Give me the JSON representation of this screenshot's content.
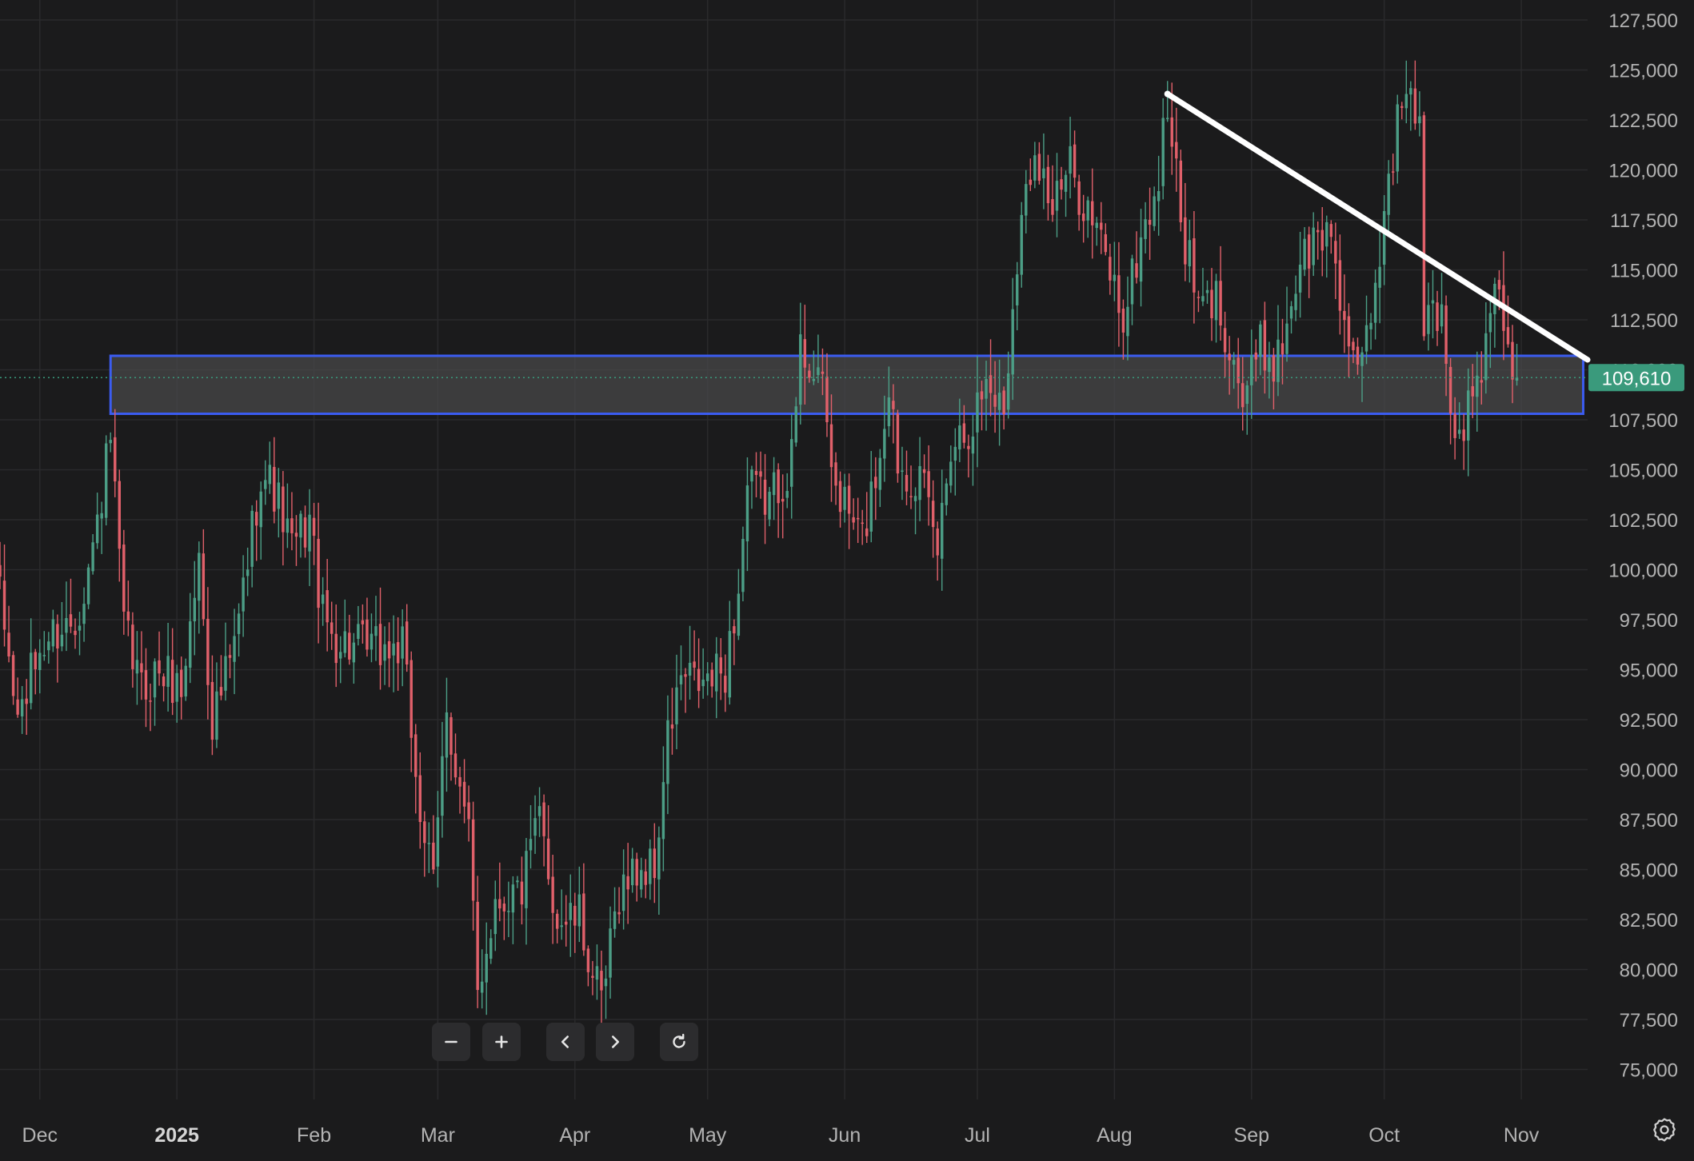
{
  "chart_data": {
    "type": "candlestick",
    "x_ticks": [
      "Dec",
      "2025",
      "Feb",
      "Mar",
      "Apr",
      "May",
      "Jun",
      "Jul",
      "Aug",
      "Sep",
      "Oct",
      "Nov"
    ],
    "y_ticks": [
      "127,500",
      "125,000",
      "122,500",
      "120,000",
      "117,500",
      "115,000",
      "112,500",
      "110,000",
      "107,500",
      "105,000",
      "102,500",
      "100,000",
      "97,500",
      "95,000",
      "92,500",
      "90,000",
      "87,500",
      "85,000",
      "82,500",
      "80,000",
      "77,500",
      "75,000"
    ],
    "ylim": [
      73500,
      128500
    ],
    "xlim": [
      "2024-11-22",
      "2025-11-16"
    ],
    "grid": true,
    "last_price": 109610,
    "last_price_label": "109,610",
    "colors": {
      "background": "#1b1b1c",
      "grid": "#2a2a2c",
      "up": "#4c9e86",
      "down": "#e0606a",
      "zone_border": "#3b5cf0",
      "zone_fill": "#4a4a4c",
      "trendline": "#ffffff",
      "last_price_badge": "#3a9a7c",
      "axis_text": "#b3b3b3"
    },
    "support_zone": {
      "from": "2024-12-17",
      "to": "2025-11-15",
      "low": 107800,
      "high": 110700
    },
    "trendline": {
      "start": [
        "2025-08-13",
        123800
      ],
      "end": [
        "2025-11-16",
        110500
      ]
    },
    "close_anchors": [
      [
        "2024-11-22",
        98500
      ],
      [
        "2024-11-26",
        92500
      ],
      [
        "2024-12-01",
        96000
      ],
      [
        "2024-12-05",
        97000
      ],
      [
        "2024-12-09",
        97500
      ],
      [
        "2024-12-13",
        101000
      ],
      [
        "2024-12-17",
        106500
      ],
      [
        "2024-12-20",
        97000
      ],
      [
        "2024-12-24",
        94000
      ],
      [
        "2024-12-28",
        95000
      ],
      [
        "2025-01-02",
        94000
      ],
      [
        "2025-01-06",
        100500
      ],
      [
        "2025-01-09",
        92500
      ],
      [
        "2025-01-14",
        96000
      ],
      [
        "2025-01-20",
        105000
      ],
      [
        "2025-01-23",
        104000
      ],
      [
        "2025-01-27",
        101000
      ],
      [
        "2025-01-31",
        102500
      ],
      [
        "2025-02-03",
        97500
      ],
      [
        "2025-02-06",
        96500
      ],
      [
        "2025-02-12",
        96000
      ],
      [
        "2025-02-18",
        96000
      ],
      [
        "2025-02-21",
        96000
      ],
      [
        "2025-02-25",
        88000
      ],
      [
        "2025-02-28",
        84000
      ],
      [
        "2025-03-03",
        93500
      ],
      [
        "2025-03-05",
        90000
      ],
      [
        "2025-03-08",
        86500
      ],
      [
        "2025-03-10",
        79000
      ],
      [
        "2025-03-14",
        83500
      ],
      [
        "2025-03-20",
        84000
      ],
      [
        "2025-03-24",
        87500
      ],
      [
        "2025-03-28",
        82500
      ],
      [
        "2025-04-02",
        82500
      ],
      [
        "2025-04-07",
        78000
      ],
      [
        "2025-04-11",
        84000
      ],
      [
        "2025-04-15",
        85000
      ],
      [
        "2025-04-19",
        85000
      ],
      [
        "2025-04-22",
        91500
      ],
      [
        "2025-04-25",
        94500
      ],
      [
        "2025-04-30",
        94200
      ],
      [
        "2025-05-05",
        95000
      ],
      [
        "2025-05-08",
        99000
      ],
      [
        "2025-05-10",
        104000
      ],
      [
        "2025-05-15",
        103500
      ],
      [
        "2025-05-20",
        105500
      ],
      [
        "2025-05-22",
        111000
      ],
      [
        "2025-05-26",
        110000
      ],
      [
        "2025-05-30",
        104000
      ],
      [
        "2025-06-05",
        101500
      ],
      [
        "2025-06-09",
        106000
      ],
      [
        "2025-06-11",
        109500
      ],
      [
        "2025-06-13",
        105500
      ],
      [
        "2025-06-18",
        104500
      ],
      [
        "2025-06-22",
        101000
      ],
      [
        "2025-06-25",
        106500
      ],
      [
        "2025-06-30",
        107500
      ],
      [
        "2025-07-03",
        109500
      ],
      [
        "2025-07-07",
        108000
      ],
      [
        "2025-07-10",
        116000
      ],
      [
        "2025-07-14",
        121500
      ],
      [
        "2025-07-18",
        118000
      ],
      [
        "2025-07-22",
        120000
      ],
      [
        "2025-07-26",
        118000
      ],
      [
        "2025-07-31",
        115000
      ],
      [
        "2025-08-03",
        112500
      ],
      [
        "2025-08-07",
        116500
      ],
      [
        "2025-08-11",
        119500
      ],
      [
        "2025-08-13",
        123500
      ],
      [
        "2025-08-16",
        117500
      ],
      [
        "2025-08-20",
        113000
      ],
      [
        "2025-08-24",
        113500
      ],
      [
        "2025-08-27",
        111500
      ],
      [
        "2025-08-30",
        108500
      ],
      [
        "2025-09-03",
        111000
      ],
      [
        "2025-09-07",
        110500
      ],
      [
        "2025-09-12",
        115500
      ],
      [
        "2025-09-16",
        116500
      ],
      [
        "2025-09-19",
        117000
      ],
      [
        "2025-09-22",
        112500
      ],
      [
        "2025-09-25",
        109000
      ],
      [
        "2025-09-29",
        114000
      ],
      [
        "2025-10-02",
        120000
      ],
      [
        "2025-10-06",
        124500
      ],
      [
        "2025-10-09",
        121500
      ],
      [
        "2025-10-10",
        112500
      ],
      [
        "2025-10-14",
        113000
      ],
      [
        "2025-10-17",
        106500
      ],
      [
        "2025-10-21",
        108500
      ],
      [
        "2025-10-24",
        111000
      ],
      [
        "2025-10-27",
        114500
      ],
      [
        "2025-10-29",
        110500
      ],
      [
        "2025-10-31",
        109610
      ]
    ]
  },
  "toolbar": {
    "zoom_out_icon": "minus-icon",
    "zoom_in_icon": "plus-icon",
    "scroll_left_icon": "chevron-left-icon",
    "scroll_right_icon": "chevron-right-icon",
    "reset_icon": "reset-icon"
  },
  "settings_icon": "settings-gear-icon"
}
